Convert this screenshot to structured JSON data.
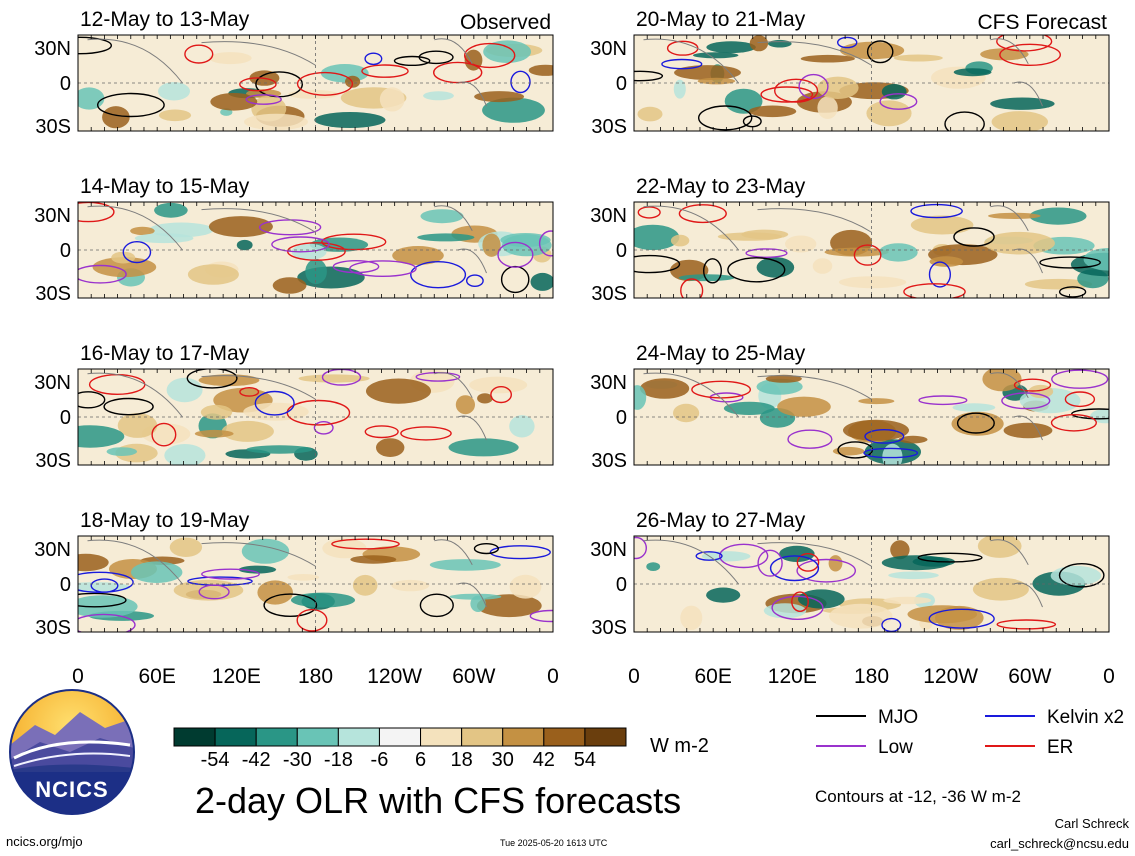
{
  "chart_data": {
    "type": "heatmap",
    "title": "2-day OLR with CFS forecasts",
    "units": "W m-2",
    "contour_note": "Contours at -12, -36 W m-2",
    "x_ticks": [
      "0",
      "60E",
      "120E",
      "180",
      "120W",
      "60W",
      "0"
    ],
    "y_ticks": [
      "30N",
      "0",
      "30S"
    ],
    "colorbar": {
      "labels": [
        "-54",
        "-42",
        "-30",
        "-18",
        "-6",
        "6",
        "18",
        "30",
        "42",
        "54"
      ],
      "colors": [
        "#003b30",
        "#06665a",
        "#2a9686",
        "#69c4b6",
        "#b6e4dc",
        "#f4f4f4",
        "#f4e2bd",
        "#e3c585",
        "#c49143",
        "#9a601c",
        "#6a3e0d"
      ]
    },
    "legend": [
      {
        "label": "MJO",
        "color": "#000000"
      },
      {
        "label": "Kelvin x2",
        "color": "#1a1adc"
      },
      {
        "label": "Low",
        "color": "#9a32cd"
      },
      {
        "label": "ER",
        "color": "#e01818"
      }
    ],
    "panels": [
      {
        "period": "12-May to 13-May",
        "tag": "Observed"
      },
      {
        "period": "20-May to 21-May",
        "tag": "CFS Forecast"
      },
      {
        "period": "14-May to 15-May",
        "tag": ""
      },
      {
        "period": "22-May to 23-May",
        "tag": ""
      },
      {
        "period": "16-May to 17-May",
        "tag": ""
      },
      {
        "period": "24-May to 25-May",
        "tag": ""
      },
      {
        "period": "18-May to 19-May",
        "tag": ""
      },
      {
        "period": "26-May to 27-May",
        "tag": ""
      }
    ]
  },
  "logo": {
    "text": "NCICS"
  },
  "footer": {
    "url": "ncics.org/mjo",
    "timestamp": "Tue 2025-05-20 1613 UTC",
    "author": "Carl Schreck",
    "email": "carl_schreck@ncsu.edu"
  }
}
